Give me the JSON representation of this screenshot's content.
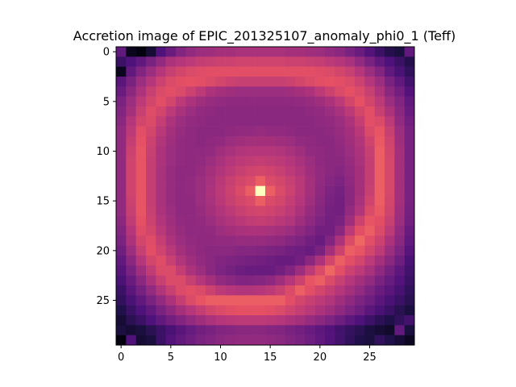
{
  "chart_data": {
    "type": "heatmap",
    "title": "Accretion image of EPIC_201325107_anomaly_phi0_1 (Teff)",
    "xlabel": "",
    "ylabel": "",
    "rows": 30,
    "cols": 30,
    "x_range": [
      -0.5,
      29.5
    ],
    "y_range": [
      29.5,
      -0.5
    ],
    "x_ticks": [
      0,
      5,
      10,
      15,
      20,
      25
    ],
    "y_ticks": [
      0,
      5,
      10,
      15,
      20,
      25
    ],
    "colormap": "magma",
    "grid": false,
    "legend": "none",
    "description_values": "normalized intensity 0-1 per pixel (row-major, row 0 at top)",
    "values": [
      [
        0.3,
        0.05,
        0.02,
        0.1,
        0.25,
        0.32,
        0.38,
        0.42,
        0.44,
        0.45,
        0.46,
        0.46,
        0.47,
        0.47,
        0.47,
        0.47,
        0.47,
        0.46,
        0.46,
        0.45,
        0.44,
        0.42,
        0.4,
        0.36,
        0.32,
        0.26,
        0.2,
        0.15,
        0.12,
        0.3
      ],
      [
        0.2,
        0.25,
        0.3,
        0.36,
        0.42,
        0.48,
        0.5,
        0.52,
        0.54,
        0.55,
        0.56,
        0.56,
        0.57,
        0.57,
        0.57,
        0.57,
        0.57,
        0.56,
        0.56,
        0.55,
        0.54,
        0.52,
        0.5,
        0.47,
        0.42,
        0.36,
        0.3,
        0.25,
        0.2,
        0.15
      ],
      [
        0.05,
        0.3,
        0.38,
        0.44,
        0.5,
        0.55,
        0.58,
        0.6,
        0.61,
        0.62,
        0.62,
        0.62,
        0.62,
        0.62,
        0.62,
        0.62,
        0.62,
        0.62,
        0.62,
        0.62,
        0.61,
        0.6,
        0.58,
        0.55,
        0.5,
        0.44,
        0.38,
        0.3,
        0.24,
        0.18
      ],
      [
        0.28,
        0.36,
        0.44,
        0.5,
        0.56,
        0.6,
        0.62,
        0.63,
        0.62,
        0.6,
        0.58,
        0.56,
        0.55,
        0.55,
        0.55,
        0.55,
        0.55,
        0.56,
        0.58,
        0.6,
        0.62,
        0.63,
        0.62,
        0.6,
        0.56,
        0.5,
        0.44,
        0.36,
        0.3,
        0.22
      ],
      [
        0.32,
        0.4,
        0.48,
        0.55,
        0.6,
        0.62,
        0.6,
        0.56,
        0.52,
        0.48,
        0.46,
        0.45,
        0.44,
        0.44,
        0.44,
        0.44,
        0.44,
        0.45,
        0.46,
        0.48,
        0.52,
        0.56,
        0.6,
        0.63,
        0.6,
        0.55,
        0.48,
        0.4,
        0.34,
        0.26
      ],
      [
        0.36,
        0.44,
        0.52,
        0.58,
        0.62,
        0.58,
        0.52,
        0.48,
        0.45,
        0.43,
        0.42,
        0.41,
        0.41,
        0.41,
        0.41,
        0.41,
        0.41,
        0.41,
        0.42,
        0.43,
        0.45,
        0.48,
        0.52,
        0.58,
        0.63,
        0.58,
        0.52,
        0.44,
        0.38,
        0.3
      ],
      [
        0.38,
        0.46,
        0.55,
        0.61,
        0.58,
        0.52,
        0.47,
        0.44,
        0.42,
        0.41,
        0.4,
        0.4,
        0.4,
        0.4,
        0.4,
        0.4,
        0.4,
        0.4,
        0.4,
        0.41,
        0.42,
        0.44,
        0.47,
        0.52,
        0.58,
        0.62,
        0.55,
        0.48,
        0.4,
        0.32
      ],
      [
        0.4,
        0.5,
        0.58,
        0.6,
        0.54,
        0.48,
        0.44,
        0.42,
        0.41,
        0.4,
        0.4,
        0.4,
        0.4,
        0.4,
        0.4,
        0.4,
        0.4,
        0.4,
        0.4,
        0.4,
        0.41,
        0.42,
        0.44,
        0.48,
        0.54,
        0.62,
        0.6,
        0.52,
        0.42,
        0.34
      ],
      [
        0.42,
        0.52,
        0.62,
        0.58,
        0.51,
        0.46,
        0.43,
        0.41,
        0.4,
        0.4,
        0.4,
        0.41,
        0.42,
        0.42,
        0.43,
        0.42,
        0.42,
        0.41,
        0.4,
        0.4,
        0.4,
        0.41,
        0.43,
        0.46,
        0.51,
        0.6,
        0.64,
        0.55,
        0.44,
        0.36
      ],
      [
        0.42,
        0.54,
        0.63,
        0.56,
        0.49,
        0.45,
        0.42,
        0.41,
        0.4,
        0.41,
        0.42,
        0.44,
        0.45,
        0.46,
        0.46,
        0.46,
        0.45,
        0.44,
        0.42,
        0.41,
        0.4,
        0.4,
        0.42,
        0.45,
        0.49,
        0.57,
        0.65,
        0.57,
        0.45,
        0.36
      ],
      [
        0.42,
        0.56,
        0.64,
        0.55,
        0.48,
        0.44,
        0.42,
        0.41,
        0.41,
        0.42,
        0.45,
        0.47,
        0.49,
        0.5,
        0.5,
        0.5,
        0.49,
        0.47,
        0.45,
        0.42,
        0.41,
        0.4,
        0.41,
        0.44,
        0.48,
        0.55,
        0.66,
        0.58,
        0.46,
        0.36
      ],
      [
        0.42,
        0.57,
        0.64,
        0.54,
        0.48,
        0.44,
        0.42,
        0.41,
        0.42,
        0.44,
        0.47,
        0.5,
        0.52,
        0.53,
        0.54,
        0.53,
        0.52,
        0.5,
        0.47,
        0.44,
        0.41,
        0.4,
        0.4,
        0.43,
        0.47,
        0.54,
        0.66,
        0.59,
        0.46,
        0.36
      ],
      [
        0.42,
        0.57,
        0.64,
        0.54,
        0.47,
        0.43,
        0.41,
        0.41,
        0.43,
        0.46,
        0.49,
        0.52,
        0.55,
        0.57,
        0.58,
        0.57,
        0.55,
        0.52,
        0.49,
        0.45,
        0.42,
        0.4,
        0.39,
        0.42,
        0.46,
        0.54,
        0.66,
        0.59,
        0.46,
        0.36
      ],
      [
        0.42,
        0.57,
        0.64,
        0.54,
        0.47,
        0.43,
        0.41,
        0.42,
        0.44,
        0.47,
        0.51,
        0.55,
        0.58,
        0.6,
        0.66,
        0.6,
        0.58,
        0.55,
        0.51,
        0.46,
        0.42,
        0.39,
        0.37,
        0.41,
        0.46,
        0.54,
        0.66,
        0.59,
        0.46,
        0.36
      ],
      [
        0.42,
        0.57,
        0.64,
        0.54,
        0.47,
        0.43,
        0.41,
        0.42,
        0.44,
        0.48,
        0.52,
        0.56,
        0.6,
        0.66,
        1.0,
        0.66,
        0.6,
        0.56,
        0.51,
        0.46,
        0.41,
        0.37,
        0.35,
        0.4,
        0.46,
        0.55,
        0.66,
        0.59,
        0.46,
        0.36
      ],
      [
        0.42,
        0.56,
        0.64,
        0.54,
        0.47,
        0.43,
        0.41,
        0.41,
        0.44,
        0.47,
        0.51,
        0.55,
        0.58,
        0.6,
        0.66,
        0.6,
        0.58,
        0.54,
        0.5,
        0.45,
        0.4,
        0.36,
        0.34,
        0.4,
        0.47,
        0.57,
        0.66,
        0.58,
        0.46,
        0.36
      ],
      [
        0.42,
        0.55,
        0.64,
        0.55,
        0.48,
        0.44,
        0.41,
        0.41,
        0.43,
        0.46,
        0.49,
        0.52,
        0.55,
        0.57,
        0.58,
        0.57,
        0.55,
        0.52,
        0.48,
        0.43,
        0.39,
        0.35,
        0.34,
        0.42,
        0.49,
        0.6,
        0.65,
        0.57,
        0.45,
        0.35
      ],
      [
        0.4,
        0.53,
        0.63,
        0.56,
        0.49,
        0.45,
        0.42,
        0.41,
        0.42,
        0.44,
        0.47,
        0.49,
        0.51,
        0.53,
        0.54,
        0.53,
        0.51,
        0.49,
        0.45,
        0.41,
        0.37,
        0.34,
        0.36,
        0.45,
        0.56,
        0.64,
        0.62,
        0.55,
        0.44,
        0.34
      ],
      [
        0.38,
        0.5,
        0.61,
        0.58,
        0.51,
        0.46,
        0.43,
        0.41,
        0.41,
        0.42,
        0.44,
        0.46,
        0.47,
        0.48,
        0.48,
        0.47,
        0.46,
        0.44,
        0.41,
        0.38,
        0.34,
        0.34,
        0.4,
        0.52,
        0.62,
        0.66,
        0.6,
        0.52,
        0.42,
        0.32
      ],
      [
        0.36,
        0.48,
        0.58,
        0.61,
        0.54,
        0.48,
        0.44,
        0.42,
        0.41,
        0.41,
        0.42,
        0.42,
        0.43,
        0.43,
        0.43,
        0.42,
        0.41,
        0.39,
        0.37,
        0.34,
        0.32,
        0.38,
        0.48,
        0.6,
        0.68,
        0.62,
        0.56,
        0.48,
        0.4,
        0.3
      ],
      [
        0.33,
        0.44,
        0.55,
        0.62,
        0.57,
        0.51,
        0.46,
        0.43,
        0.41,
        0.4,
        0.4,
        0.4,
        0.39,
        0.39,
        0.38,
        0.37,
        0.36,
        0.34,
        0.33,
        0.32,
        0.36,
        0.46,
        0.56,
        0.66,
        0.64,
        0.58,
        0.52,
        0.44,
        0.37,
        0.27
      ],
      [
        0.3,
        0.4,
        0.5,
        0.58,
        0.61,
        0.55,
        0.49,
        0.45,
        0.42,
        0.4,
        0.38,
        0.37,
        0.36,
        0.35,
        0.34,
        0.33,
        0.32,
        0.32,
        0.34,
        0.4,
        0.48,
        0.58,
        0.66,
        0.62,
        0.58,
        0.52,
        0.46,
        0.4,
        0.33,
        0.24
      ],
      [
        0.27,
        0.36,
        0.45,
        0.53,
        0.6,
        0.6,
        0.54,
        0.48,
        0.44,
        0.4,
        0.37,
        0.35,
        0.33,
        0.32,
        0.32,
        0.32,
        0.34,
        0.38,
        0.44,
        0.52,
        0.6,
        0.68,
        0.62,
        0.56,
        0.52,
        0.47,
        0.41,
        0.35,
        0.29,
        0.22
      ],
      [
        0.24,
        0.32,
        0.4,
        0.48,
        0.55,
        0.6,
        0.6,
        0.55,
        0.5,
        0.46,
        0.42,
        0.4,
        0.38,
        0.38,
        0.39,
        0.41,
        0.45,
        0.5,
        0.56,
        0.64,
        0.66,
        0.6,
        0.55,
        0.5,
        0.46,
        0.42,
        0.36,
        0.31,
        0.26,
        0.2
      ],
      [
        0.2,
        0.28,
        0.35,
        0.42,
        0.49,
        0.55,
        0.6,
        0.62,
        0.6,
        0.56,
        0.52,
        0.5,
        0.49,
        0.49,
        0.5,
        0.52,
        0.55,
        0.6,
        0.66,
        0.62,
        0.58,
        0.54,
        0.5,
        0.46,
        0.42,
        0.37,
        0.32,
        0.28,
        0.23,
        0.18
      ],
      [
        0.18,
        0.24,
        0.3,
        0.36,
        0.42,
        0.48,
        0.54,
        0.6,
        0.64,
        0.66,
        0.66,
        0.66,
        0.66,
        0.66,
        0.66,
        0.66,
        0.66,
        0.62,
        0.58,
        0.55,
        0.52,
        0.49,
        0.45,
        0.41,
        0.37,
        0.33,
        0.28,
        0.24,
        0.2,
        0.16
      ],
      [
        0.14,
        0.2,
        0.25,
        0.3,
        0.36,
        0.41,
        0.46,
        0.5,
        0.54,
        0.58,
        0.6,
        0.62,
        0.63,
        0.63,
        0.63,
        0.62,
        0.6,
        0.57,
        0.54,
        0.51,
        0.48,
        0.45,
        0.41,
        0.37,
        0.33,
        0.28,
        0.24,
        0.2,
        0.16,
        0.12
      ],
      [
        0.1,
        0.16,
        0.2,
        0.25,
        0.3,
        0.34,
        0.38,
        0.42,
        0.45,
        0.48,
        0.5,
        0.51,
        0.52,
        0.52,
        0.52,
        0.51,
        0.5,
        0.48,
        0.46,
        0.43,
        0.4,
        0.37,
        0.33,
        0.29,
        0.25,
        0.21,
        0.17,
        0.14,
        0.18,
        0.22
      ],
      [
        0.12,
        0.1,
        0.12,
        0.16,
        0.2,
        0.24,
        0.28,
        0.31,
        0.34,
        0.36,
        0.38,
        0.39,
        0.4,
        0.4,
        0.4,
        0.39,
        0.38,
        0.36,
        0.34,
        0.32,
        0.29,
        0.26,
        0.22,
        0.19,
        0.16,
        0.12,
        0.1,
        0.08,
        0.3,
        0.12
      ],
      [
        0.02,
        0.25,
        0.1,
        0.12,
        0.2,
        0.26,
        0.3,
        0.33,
        0.36,
        0.38,
        0.4,
        0.41,
        0.42,
        0.42,
        0.42,
        0.41,
        0.4,
        0.38,
        0.36,
        0.33,
        0.3,
        0.26,
        0.22,
        0.18,
        0.14,
        0.12,
        0.18,
        0.14,
        0.1,
        0.06
      ]
    ]
  }
}
